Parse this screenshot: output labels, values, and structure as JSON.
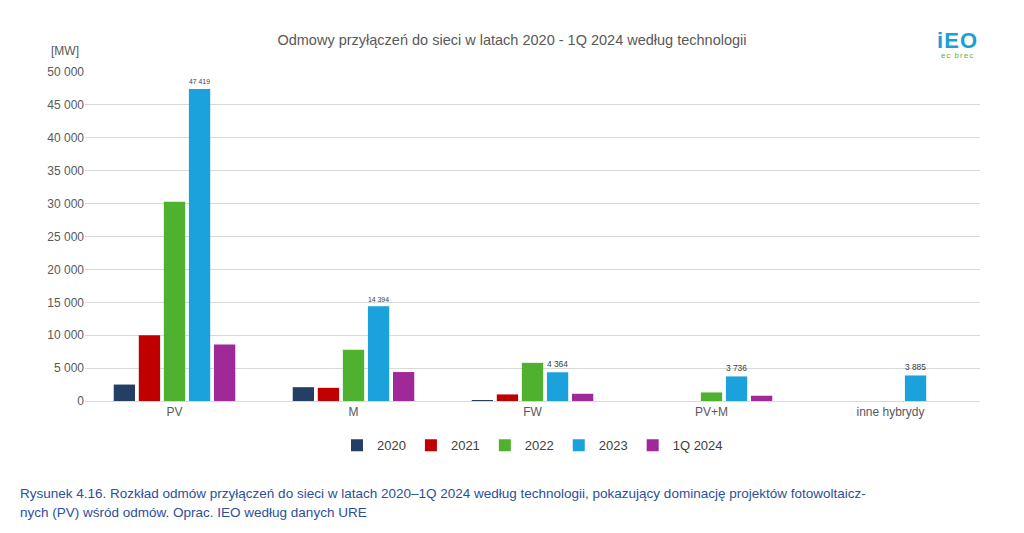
{
  "chart_data": {
    "type": "bar",
    "title": "Odmowy przyłączeń do sieci w latach 2020 - 1Q 2024 według technologii",
    "ylabel": "[MW]",
    "categories": [
      "PV",
      "M",
      "FW",
      "PV+M",
      "inne hybrydy"
    ],
    "series": [
      {
        "name": "2020",
        "color": "#243f66",
        "values": [
          2500,
          2100,
          150,
          null,
          null
        ]
      },
      {
        "name": "2021",
        "color": "#c00000",
        "values": [
          10000,
          2000,
          1000,
          null,
          null
        ]
      },
      {
        "name": "2022",
        "color": "#50b030",
        "values": [
          30300,
          7800,
          5800,
          1300,
          null
        ]
      },
      {
        "name": "2023",
        "color": "#1ba1dc",
        "values": [
          47419,
          14394,
          4364,
          3736,
          3885
        ],
        "data_labels": true,
        "value_labels": [
          "47 419",
          "14 394",
          "4 364",
          "3 736",
          "3 885"
        ]
      },
      {
        "name": "1Q 2024",
        "color": "#a0299a",
        "values": [
          8600,
          4400,
          1100,
          800,
          null
        ]
      }
    ],
    "ylim": [
      0,
      50000
    ],
    "yticks": [
      0,
      {
        "value": 5000,
        "label": "5 000"
      },
      {
        "value": 10000,
        "label": "10 000"
      },
      {
        "value": 15000,
        "label": "15 000"
      },
      {
        "value": 20000,
        "label": "20 000"
      },
      {
        "value": 25000,
        "label": "25 000"
      },
      {
        "value": 30000,
        "label": "30 000"
      },
      {
        "value": 35000,
        "label": "35 000"
      },
      {
        "value": 40000,
        "label": "40 000"
      },
      {
        "value": 45000,
        "label": "45 000"
      },
      {
        "value": 50000,
        "label": "50 000"
      }
    ],
    "grid": true,
    "legend": "bottom",
    "logo": {
      "text": "iEO",
      "subtitle": "ec brec"
    },
    "caption": [
      "Rysunek 4.16. Rozkład odmów przyłączeń do sieci w latach 2020–1Q 2024 według technologii, pokazujący dominację projektów fotowoltaicz-",
      "nych (PV) wśród odmów. Oprac. IEO według danych URE"
    ]
  }
}
